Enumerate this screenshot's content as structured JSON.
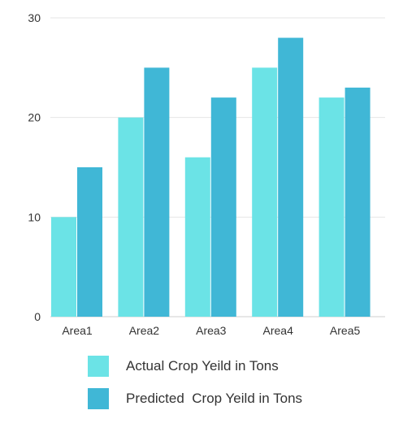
{
  "chart_data": {
    "type": "bar",
    "title": "",
    "xlabel": "",
    "ylabel": "",
    "categories": [
      "Area1",
      "Area2",
      "Area3",
      "Area4",
      "Area5"
    ],
    "series": [
      {
        "name": "Actual Crop Yeild in Tons",
        "values": [
          10,
          20,
          16,
          25,
          22
        ],
        "color": "#6be3e6"
      },
      {
        "name": "Predicted  Crop Yeild in Tons",
        "values": [
          15,
          25,
          22,
          28,
          23
        ],
        "color": "#40b7d6"
      }
    ],
    "ylim": [
      0,
      30
    ],
    "yticks": [
      0,
      10,
      20,
      30
    ],
    "grid": true,
    "legend_position": "bottom"
  }
}
